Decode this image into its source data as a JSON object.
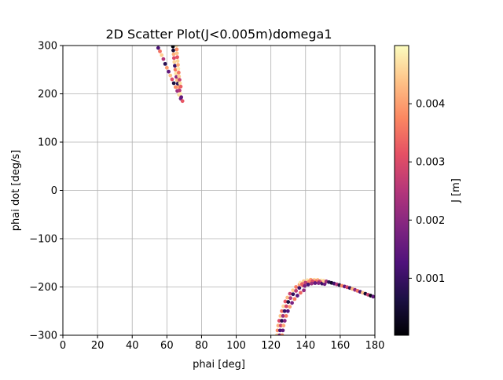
{
  "chart_data": {
    "type": "scatter",
    "title": "2D Scatter Plot(J<0.005m)domega1",
    "xlabel": "phai [deg]",
    "ylabel": "phai dot [deg/s]",
    "xlim": [
      0,
      180
    ],
    "ylim": [
      -300,
      300
    ],
    "xticks": [
      0,
      20,
      40,
      60,
      80,
      100,
      120,
      140,
      160,
      180
    ],
    "xtick_labels": [
      "0",
      "20",
      "40",
      "60",
      "80",
      "100",
      "120",
      "140",
      "160",
      "180"
    ],
    "yticks": [
      300,
      200,
      100,
      0,
      -100,
      -200,
      -300
    ],
    "ytick_labels": [
      "300",
      "200",
      "100",
      "0",
      "−100",
      "−200",
      "−300"
    ],
    "grid": true,
    "colormap": "magma",
    "colorbar": {
      "label": "J [m]",
      "range": [
        2e-05,
        0.005
      ],
      "ticks": [
        0.001,
        0.002,
        0.003,
        0.004
      ],
      "tick_labels": [
        "0.001",
        "0.002",
        "0.003",
        "0.004"
      ]
    },
    "series": [
      {
        "points": [
          [
            55,
            295,
            0.0012
          ],
          [
            56,
            288,
            0.0035
          ],
          [
            57,
            280,
            0.0045
          ],
          [
            58,
            272,
            0.0025
          ],
          [
            59,
            262,
            0.0008
          ],
          [
            60,
            254,
            0.004
          ],
          [
            61,
            246,
            0.0015
          ],
          [
            62,
            238,
            0.0044
          ],
          [
            63,
            230,
            0.003
          ],
          [
            64,
            222,
            0.0006
          ],
          [
            65,
            214,
            0.0038
          ],
          [
            66,
            206,
            0.0022
          ],
          [
            67,
            198,
            0.0046
          ],
          [
            68,
            190,
            0.0018
          ],
          [
            69,
            185,
            0.0032
          ],
          [
            63.5,
            298,
            0.0001
          ],
          [
            63.7,
            290,
            0.0005
          ],
          [
            63.9,
            282,
            0.0042
          ],
          [
            64.1,
            274,
            0.003
          ],
          [
            64.3,
            266,
            0.0046
          ],
          [
            64.6,
            258,
            0.001
          ],
          [
            64.9,
            250,
            0.0036
          ],
          [
            65.2,
            242,
            0.0047
          ],
          [
            65.5,
            235,
            0.002
          ],
          [
            65.9,
            228,
            0.0044
          ],
          [
            66.3,
            221,
            0.0008
          ],
          [
            66.8,
            214,
            0.004
          ],
          [
            67.3,
            207,
            0.0025
          ],
          [
            67.8,
            200,
            0.0048
          ],
          [
            68.3,
            193,
            0.0015
          ],
          [
            65.6,
            300,
            0.0047
          ],
          [
            65.7,
            292,
            0.0038
          ],
          [
            65.8,
            284,
            0.0044
          ],
          [
            66.0,
            276,
            0.0032
          ],
          [
            66.2,
            268,
            0.0046
          ],
          [
            66.4,
            260,
            0.0041
          ],
          [
            66.6,
            252,
            0.0048
          ],
          [
            66.8,
            244,
            0.0036
          ],
          [
            67.0,
            236,
            0.0045
          ],
          [
            67.3,
            229,
            0.0028
          ],
          [
            67.6,
            222,
            0.0047
          ],
          [
            68.0,
            215,
            0.0033
          ]
        ]
      },
      {
        "points": [
          [
            123.5,
            -300,
            0.0045
          ],
          [
            123.8,
            -290,
            0.0038
          ],
          [
            124.2,
            -280,
            0.0042
          ],
          [
            124.8,
            -270,
            0.003
          ],
          [
            125.5,
            -260,
            0.0044
          ],
          [
            126.3,
            -250,
            0.0035
          ],
          [
            127.2,
            -240,
            0.0046
          ],
          [
            128.3,
            -230,
            0.0032
          ],
          [
            129.5,
            -222,
            0.0043
          ],
          [
            131.0,
            -214,
            0.0028
          ],
          [
            132.7,
            -207,
            0.0045
          ],
          [
            134.5,
            -200,
            0.0036
          ],
          [
            136.5,
            -195,
            0.004
          ],
          [
            125.0,
            -300,
            0.002
          ],
          [
            125.3,
            -290,
            0.0012
          ],
          [
            125.7,
            -280,
            0.0028
          ],
          [
            126.3,
            -270,
            0.0008
          ],
          [
            127.0,
            -260,
            0.0022
          ],
          [
            127.9,
            -250,
            0.001
          ],
          [
            128.9,
            -240,
            0.003
          ],
          [
            130.0,
            -231,
            0.0006
          ],
          [
            131.3,
            -223,
            0.0024
          ],
          [
            132.8,
            -215,
            0.0009
          ],
          [
            134.5,
            -208,
            0.0026
          ],
          [
            136.4,
            -202,
            0.0011
          ],
          [
            138.5,
            -197,
            0.0033
          ],
          [
            126.5,
            -300,
            0.0038
          ],
          [
            126.9,
            -290,
            0.0015
          ],
          [
            127.3,
            -280,
            0.0041
          ],
          [
            128.0,
            -270,
            0.0019
          ],
          [
            128.8,
            -260,
            0.0036
          ],
          [
            129.8,
            -250,
            0.0013
          ],
          [
            130.9,
            -241,
            0.004
          ],
          [
            132.2,
            -233,
            0.0018
          ],
          [
            133.7,
            -225,
            0.0037
          ],
          [
            135.3,
            -218,
            0.0014
          ],
          [
            137.1,
            -212,
            0.0034
          ],
          [
            139.0,
            -207,
            0.0021
          ],
          [
            137.0,
            -191,
            0.0048
          ],
          [
            139.0,
            -188,
            0.0044
          ],
          [
            141.0,
            -186,
            0.0047
          ],
          [
            143.0,
            -185,
            0.004
          ],
          [
            145.0,
            -185,
            0.0046
          ],
          [
            147.0,
            -185.5,
            0.0043
          ],
          [
            149.0,
            -186.5,
            0.0048
          ],
          [
            138.0,
            -194,
            0.0033
          ],
          [
            140.0,
            -191,
            0.0026
          ],
          [
            142.0,
            -189,
            0.0038
          ],
          [
            144.0,
            -188,
            0.003
          ],
          [
            146.0,
            -188,
            0.0035
          ],
          [
            148.0,
            -188.5,
            0.0028
          ],
          [
            150.0,
            -189.5,
            0.0031
          ],
          [
            139.5,
            -198,
            0.0018
          ],
          [
            141.5,
            -195,
            0.0012
          ],
          [
            143.5,
            -193,
            0.0022
          ],
          [
            145.5,
            -192,
            0.0015
          ],
          [
            147.5,
            -192,
            0.0019
          ],
          [
            149.5,
            -193,
            0.001
          ],
          [
            151.0,
            -194,
            0.0016
          ],
          [
            150.5,
            -187.5,
            0.0045
          ],
          [
            152.0,
            -188.5,
            0.0022
          ],
          [
            153.5,
            -190,
            0.0008
          ],
          [
            155.0,
            -191.5,
            0.0004
          ],
          [
            156.5,
            -193,
            0.0011
          ],
          [
            158.0,
            -194.5,
            0.0025
          ],
          [
            159.5,
            -196,
            0.0006
          ],
          [
            161.0,
            -197.5,
            0.0038
          ],
          [
            162.5,
            -199,
            0.0015
          ],
          [
            164.0,
            -200.5,
            0.003
          ],
          [
            165.5,
            -202,
            0.0009
          ],
          [
            167.0,
            -204,
            0.0042
          ],
          [
            168.5,
            -206,
            0.002
          ],
          [
            170.0,
            -208,
            0.0035
          ],
          [
            171.5,
            -210,
            0.0012
          ],
          [
            173.0,
            -212,
            0.0044
          ],
          [
            174.5,
            -214,
            0.0005
          ],
          [
            176.0,
            -216,
            0.0028
          ],
          [
            177.5,
            -218,
            0.0002
          ],
          [
            179.0,
            -220,
            0.0015
          ]
        ]
      }
    ]
  }
}
